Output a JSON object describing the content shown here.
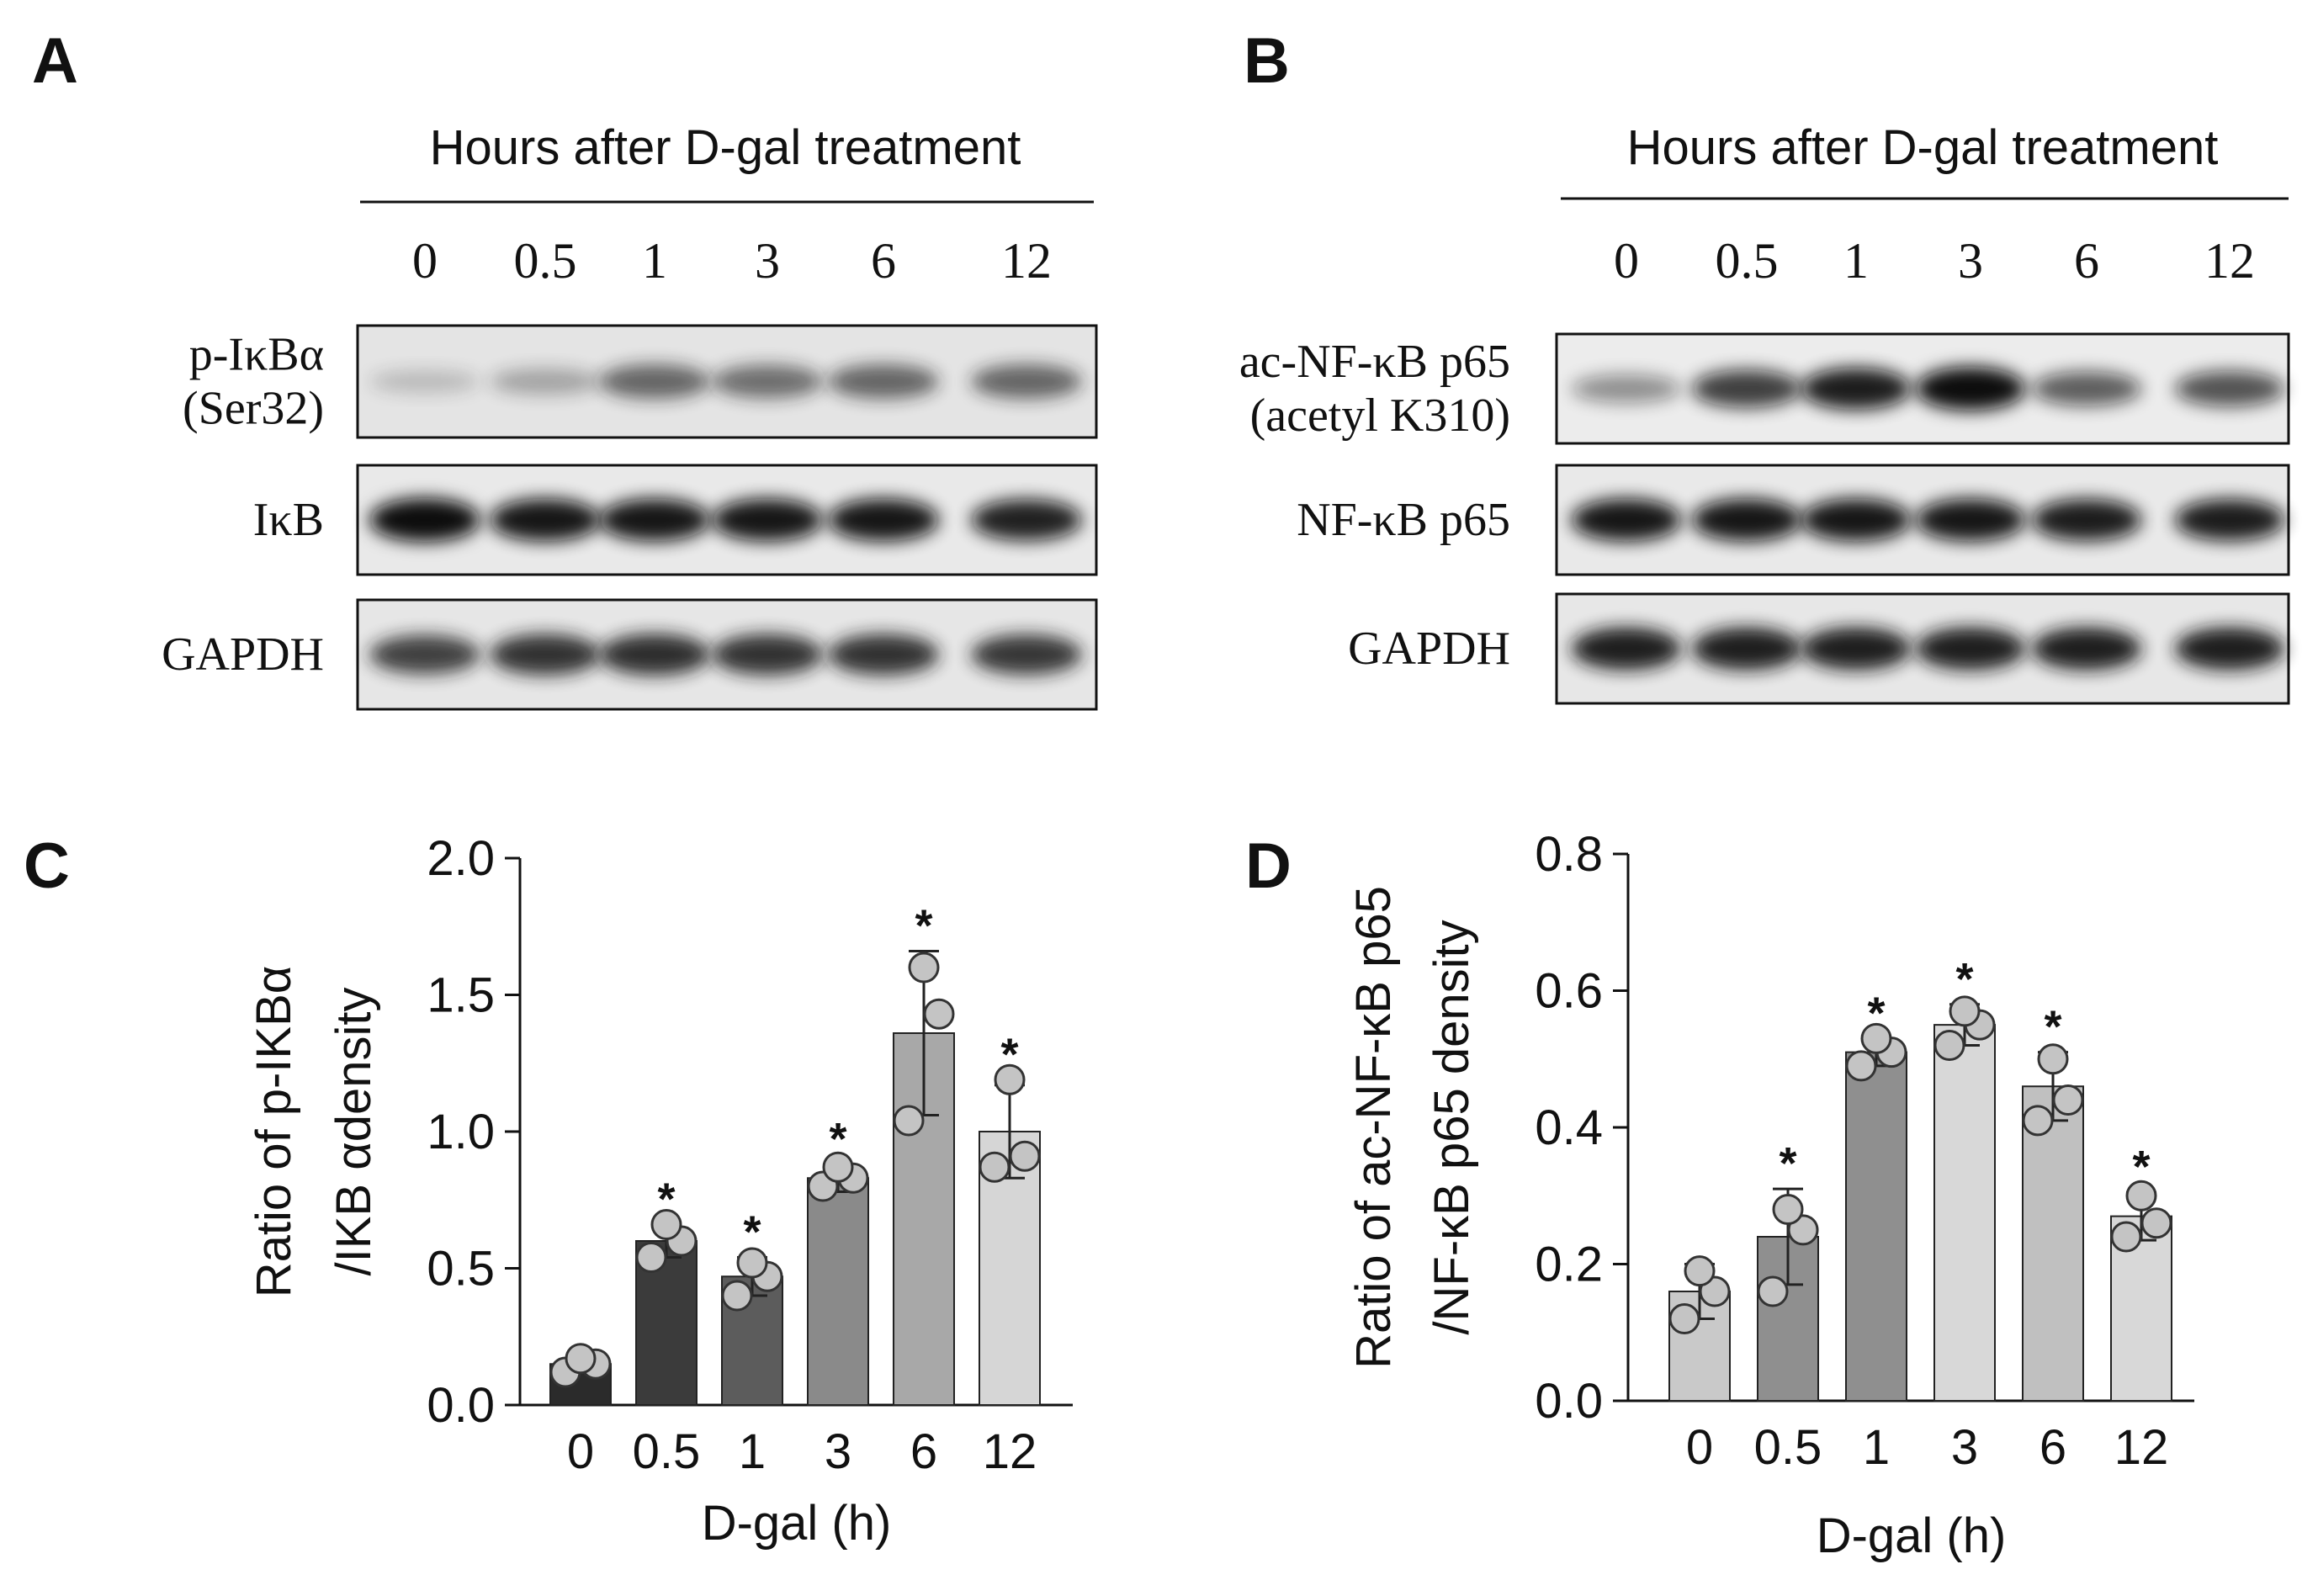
{
  "panels": {
    "A": {
      "letter": "A",
      "header": "Hours after D-gal treatment",
      "lanes": [
        "0",
        "0.5",
        "1",
        "3",
        "6",
        "12"
      ],
      "blots": [
        {
          "label_lines": [
            "p-IκBα",
            "(Ser32)"
          ],
          "intensity": [
            0.12,
            0.25,
            0.6,
            0.55,
            0.6,
            0.6
          ],
          "band_color": "#1a1a1a",
          "bg": "#e4e4e4"
        },
        {
          "label_lines": [
            "IκB"
          ],
          "intensity": [
            1.0,
            0.95,
            0.95,
            0.95,
            0.95,
            0.9
          ],
          "band_color": "#0d0d0d",
          "bg": "#e9e9e9"
        },
        {
          "label_lines": [
            "GAPDH"
          ],
          "intensity": [
            0.8,
            0.88,
            0.9,
            0.88,
            0.88,
            0.85
          ],
          "band_color": "#1a1a1a",
          "bg": "#e6e6e6"
        }
      ]
    },
    "B": {
      "letter": "B",
      "header": "Hours after D-gal treatment",
      "lanes": [
        "0",
        "0.5",
        "1",
        "3",
        "6",
        "12"
      ],
      "blots": [
        {
          "label_lines": [
            "ac-NF-κB p65",
            "(acetyl K310)"
          ],
          "intensity": [
            0.35,
            0.75,
            0.92,
            1.0,
            0.6,
            0.65
          ],
          "band_color": "#0d0d0d",
          "bg": "#ececec"
        },
        {
          "label_lines": [
            "NF-κB p65"
          ],
          "intensity": [
            0.95,
            0.95,
            0.95,
            0.95,
            0.92,
            0.92
          ],
          "band_color": "#111111",
          "bg": "#e9e9e9"
        },
        {
          "label_lines": [
            "GAPDH"
          ],
          "intensity": [
            0.95,
            0.95,
            0.95,
            0.95,
            0.95,
            0.95
          ],
          "band_color": "#161616",
          "bg": "#e7e7e7"
        }
      ]
    },
    "C": {
      "letter": "C",
      "chart_data": {
        "type": "bar",
        "categories": [
          "0",
          "0.5",
          "1",
          "3",
          "6",
          "12"
        ],
        "values": [
          0.15,
          0.6,
          0.47,
          0.83,
          1.36,
          1.0
        ],
        "errors": [
          0.02,
          0.06,
          0.07,
          0.05,
          0.3,
          0.17
        ],
        "points": [
          [
            0.12,
            0.15,
            0.17
          ],
          [
            0.54,
            0.6,
            0.66
          ],
          [
            0.4,
            0.47,
            0.52
          ],
          [
            0.8,
            0.83,
            0.87
          ],
          [
            1.04,
            1.43,
            1.6
          ],
          [
            0.87,
            0.91,
            1.19
          ]
        ],
        "significant": [
          false,
          true,
          true,
          true,
          true,
          true
        ],
        "star_label": "*",
        "bar_colors": [
          "#2b2b2b",
          "#3b3b3b",
          "#5c5c5c",
          "#8a8a8a",
          "#a8a8a8",
          "#d6d6d6"
        ],
        "point_color": "#c4c4c4",
        "xlabel": "D-gal (h)",
        "ylabel_lines": [
          "Ratio of p-IKBα",
          "/IKB αdensity"
        ],
        "ylim": [
          0,
          2.0
        ],
        "yticks": [
          "0.0",
          "0.5",
          "1.0",
          "1.5",
          "2.0"
        ],
        "ytick_values": [
          0,
          0.5,
          1.0,
          1.5,
          2.0
        ],
        "grid": false
      }
    },
    "D": {
      "letter": "D",
      "chart_data": {
        "type": "bar",
        "categories": [
          "0",
          "0.5",
          "1",
          "3",
          "6",
          "12"
        ],
        "values": [
          0.16,
          0.24,
          0.51,
          0.55,
          0.46,
          0.27
        ],
        "errors": [
          0.04,
          0.07,
          0.02,
          0.03,
          0.05,
          0.035
        ],
        "points": [
          [
            0.12,
            0.16,
            0.19
          ],
          [
            0.16,
            0.25,
            0.28
          ],
          [
            0.49,
            0.51,
            0.53
          ],
          [
            0.52,
            0.55,
            0.57
          ],
          [
            0.41,
            0.44,
            0.5
          ],
          [
            0.24,
            0.26,
            0.3
          ]
        ],
        "significant": [
          false,
          true,
          true,
          true,
          true,
          true
        ],
        "star_label": "*",
        "bar_colors": [
          "#c9c9c9",
          "#8f8f8f",
          "#8f8f8f",
          "#d8d8d8",
          "#c0c0c0",
          "#d8d8d8"
        ],
        "point_color": "#c4c4c4",
        "xlabel": "D-gal (h)",
        "ylabel_lines": [
          "Ratio of ac-NF-κB p65",
          "/NF-κB p65 density"
        ],
        "ylim": [
          0,
          0.8
        ],
        "yticks": [
          "0.0",
          "0.2",
          "0.4",
          "0.6",
          "0.8"
        ],
        "ytick_values": [
          0,
          0.2,
          0.4,
          0.6,
          0.8
        ],
        "grid": false
      }
    }
  }
}
